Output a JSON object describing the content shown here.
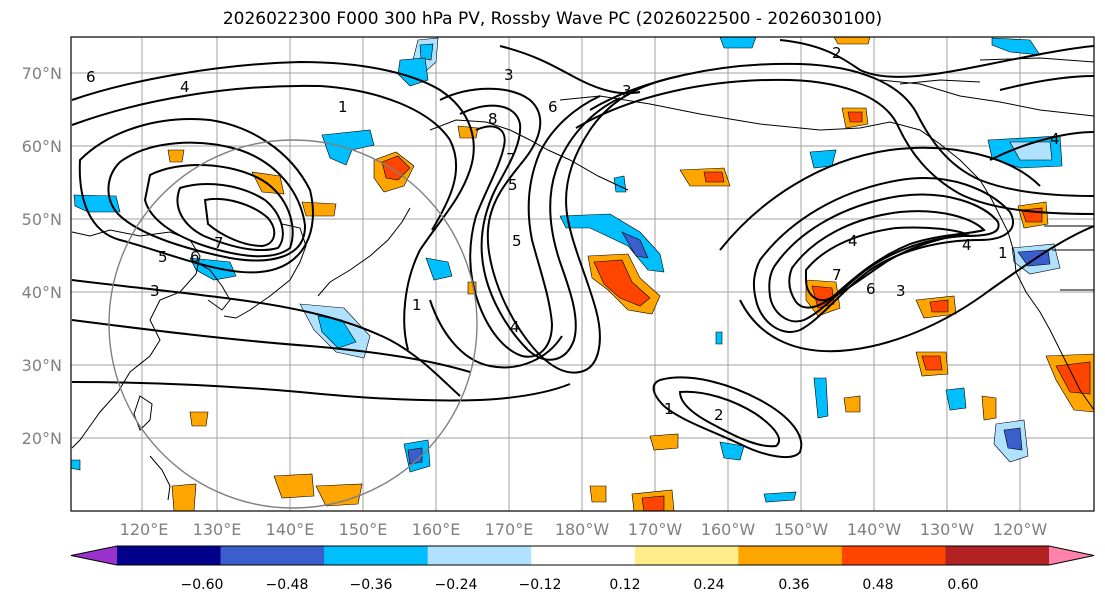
{
  "map": {
    "title": "2026022300 F000 300 hPa PV, Rossby Wave PC (2026022500 - 2026030100)",
    "lat_labels": [
      "70°N",
      "60°N",
      "50°N",
      "40°N",
      "30°N",
      "20°N"
    ],
    "lon_labels": [
      "120°E",
      "130°E",
      "140°E",
      "150°E",
      "160°E",
      "170°E",
      "180°W",
      "170°W",
      "160°W",
      "150°W",
      "140°W",
      "130°W",
      "120°W"
    ],
    "contour_labels": [
      "4",
      "1",
      "6",
      "5",
      "6",
      "7",
      "3",
      "8",
      "7",
      "5",
      "1",
      "4",
      "3",
      "6",
      "4",
      "7",
      "5",
      "6",
      "3",
      "4",
      "1",
      "2",
      "1",
      "2",
      "4",
      "3"
    ],
    "colorbar": {
      "ticks": [
        "−0.60",
        "−0.48",
        "−0.36",
        "−0.24",
        "−0.12",
        "0.12",
        "0.24",
        "0.36",
        "0.48",
        "0.60"
      ],
      "colors": [
        "#9a32cd",
        "#00008b",
        "#3a5fcd",
        "#00bfff",
        "#b0e2ff",
        "#ffffff",
        "#ffec8b",
        "#ffa500",
        "#ff4500",
        "#b22222",
        "#ff82ab"
      ]
    }
  }
}
